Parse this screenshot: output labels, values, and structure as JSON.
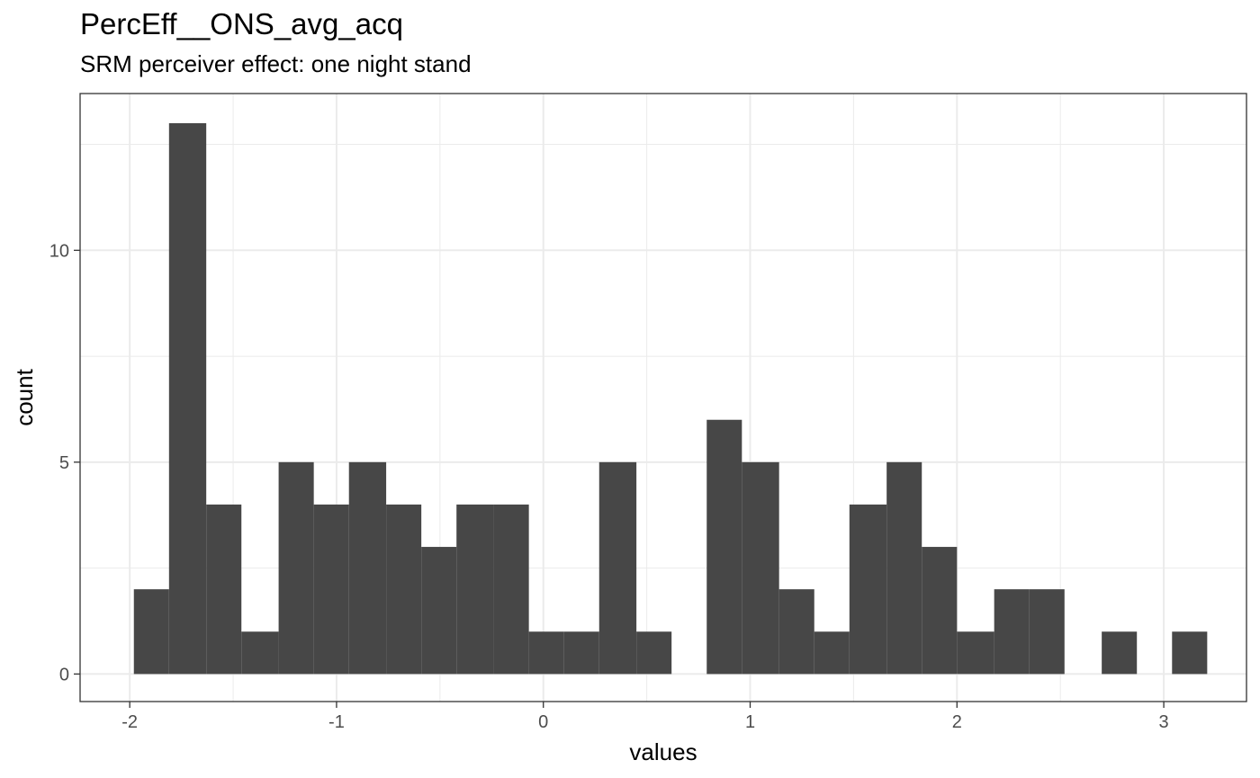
{
  "chart_data": {
    "type": "bar",
    "title": "PercEff__ONS_avg_acq",
    "subtitle": "SRM perceiver effect: one night stand",
    "xlabel": "values",
    "ylabel": "count",
    "xlim": [
      -2.24,
      3.4
    ],
    "ylim": [
      -0.65,
      13.7
    ],
    "x_ticks": [
      -2,
      -1,
      0,
      1,
      2,
      3
    ],
    "x_tick_labels": [
      "-2",
      "-1",
      "0",
      "1",
      "2",
      "3"
    ],
    "y_ticks": [
      0,
      5,
      10
    ],
    "y_tick_labels": [
      "0",
      "5",
      "10"
    ],
    "grid": true,
    "bar_color": "#474747",
    "bins": [
      {
        "x0": -1.98,
        "x1": -1.81,
        "count": 2
      },
      {
        "x0": -1.81,
        "x1": -1.63,
        "count": 13
      },
      {
        "x0": -1.63,
        "x1": -1.46,
        "count": 4
      },
      {
        "x0": -1.46,
        "x1": -1.28,
        "count": 1
      },
      {
        "x0": -1.28,
        "x1": -1.11,
        "count": 5
      },
      {
        "x0": -1.11,
        "x1": -0.94,
        "count": 4
      },
      {
        "x0": -0.94,
        "x1": -0.76,
        "count": 5
      },
      {
        "x0": -0.76,
        "x1": -0.59,
        "count": 4
      },
      {
        "x0": -0.59,
        "x1": -0.42,
        "count": 3
      },
      {
        "x0": -0.42,
        "x1": -0.24,
        "count": 4
      },
      {
        "x0": -0.24,
        "x1": -0.07,
        "count": 4
      },
      {
        "x0": -0.07,
        "x1": 0.1,
        "count": 1
      },
      {
        "x0": 0.1,
        "x1": 0.27,
        "count": 1
      },
      {
        "x0": 0.27,
        "x1": 0.45,
        "count": 5
      },
      {
        "x0": 0.45,
        "x1": 0.62,
        "count": 1
      },
      {
        "x0": 0.62,
        "x1": 0.79,
        "count": 0
      },
      {
        "x0": 0.79,
        "x1": 0.96,
        "count": 6
      },
      {
        "x0": 0.96,
        "x1": 1.14,
        "count": 5
      },
      {
        "x0": 1.14,
        "x1": 1.31,
        "count": 2
      },
      {
        "x0": 1.31,
        "x1": 1.48,
        "count": 1
      },
      {
        "x0": 1.48,
        "x1": 1.66,
        "count": 4
      },
      {
        "x0": 1.66,
        "x1": 1.83,
        "count": 5
      },
      {
        "x0": 1.83,
        "x1": 2.0,
        "count": 3
      },
      {
        "x0": 2.0,
        "x1": 2.18,
        "count": 1
      },
      {
        "x0": 2.18,
        "x1": 2.35,
        "count": 2
      },
      {
        "x0": 2.35,
        "x1": 2.52,
        "count": 2
      },
      {
        "x0": 2.52,
        "x1": 2.7,
        "count": 0
      },
      {
        "x0": 2.7,
        "x1": 2.87,
        "count": 1
      },
      {
        "x0": 2.87,
        "x1": 3.04,
        "count": 0
      },
      {
        "x0": 3.04,
        "x1": 3.21,
        "count": 1
      }
    ]
  }
}
